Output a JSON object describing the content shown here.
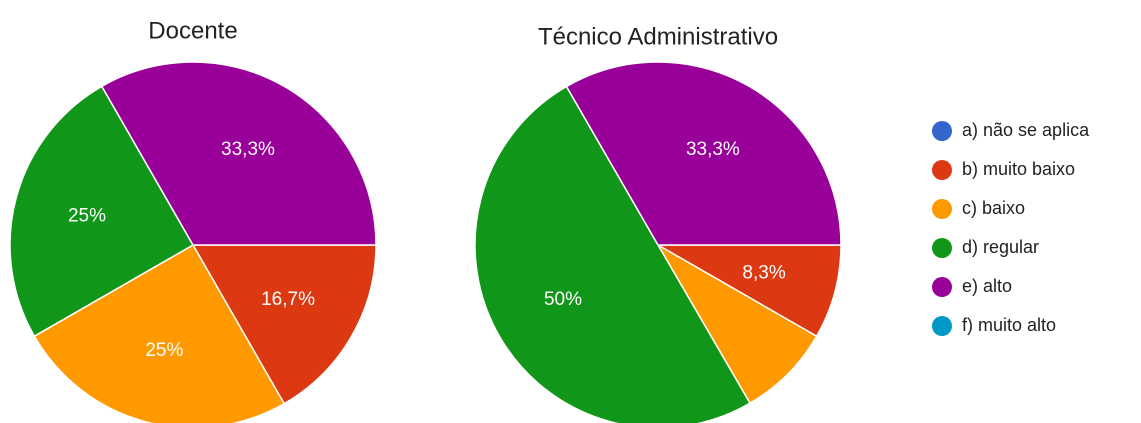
{
  "chart_data": [
    {
      "type": "pie",
      "title": "Docente",
      "categories": [
        "a) não se aplica",
        "b) muito baixo",
        "c) baixo",
        "d) regular",
        "e) alto",
        "f) muito alto"
      ],
      "values": [
        0,
        16.7,
        25,
        25,
        33.3,
        0
      ],
      "value_labels": [
        null,
        "16,7%",
        "25%",
        "25%",
        "33,3%",
        null
      ],
      "colors": [
        "#3366cc",
        "#dc3912",
        "#ff9900",
        "#109618",
        "#990099",
        "#0099c6"
      ]
    },
    {
      "type": "pie",
      "title": "Técnico Administrativo",
      "categories": [
        "a) não se aplica",
        "b) muito baixo",
        "c) baixo",
        "d) regular",
        "e) alto",
        "f) muito alto"
      ],
      "values": [
        0,
        8.3,
        8.3,
        50,
        33.3,
        0
      ],
      "value_labels": [
        null,
        "8,3%",
        null,
        "50%",
        "33,3%",
        null
      ],
      "colors": [
        "#3366cc",
        "#dc3912",
        "#ff9900",
        "#109618",
        "#990099",
        "#0099c6"
      ]
    }
  ]
}
